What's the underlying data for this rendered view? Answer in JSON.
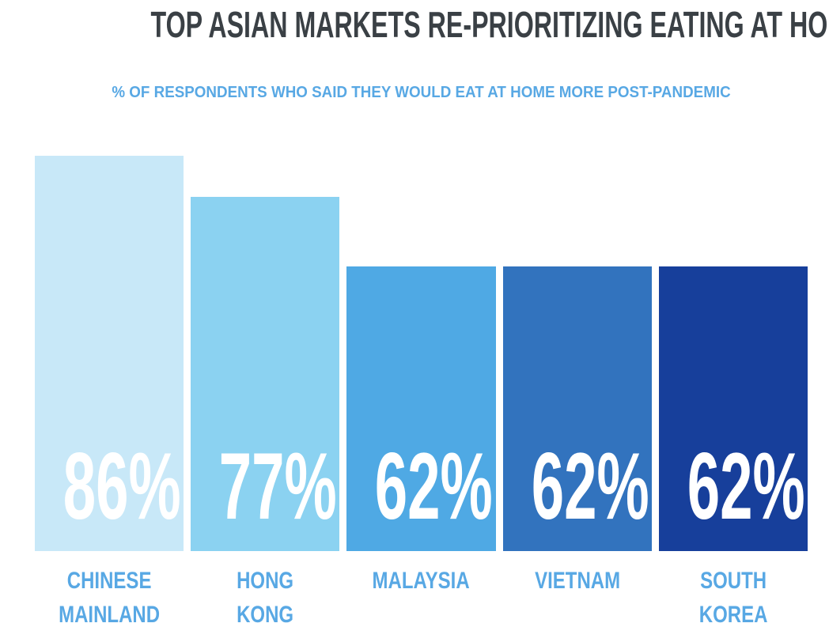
{
  "header": {
    "title": "TOP ASIAN MARKETS RE-PRIORITIZING EATING AT HOME",
    "subtitle": "% OF RESPONDENTS WHO SAID THEY WOULD EAT AT HOME MORE POST-PANDEMIC"
  },
  "chart_data": {
    "type": "bar",
    "orientation": "vertical",
    "title": "TOP ASIAN MARKETS RE-PRIORITIZING EATING AT HOME",
    "subtitle": "% OF RESPONDENTS WHO SAID THEY WOULD EAT AT HOME MORE POST-PANDEMIC",
    "categories": [
      "CHINESE MAINLAND",
      "HONG KONG",
      "MALAYSIA",
      "VIETNAM",
      "SOUTH KOREA"
    ],
    "category_lines": [
      [
        "CHINESE",
        "MAINLAND"
      ],
      [
        "HONG",
        "KONG"
      ],
      [
        "MALAYSIA"
      ],
      [
        "VIETNAM"
      ],
      [
        "SOUTH",
        "KOREA"
      ]
    ],
    "values": [
      86,
      77,
      62,
      62,
      62
    ],
    "value_labels": [
      "86%",
      "77%",
      "62%",
      "62%",
      "62%"
    ],
    "unit": "%",
    "ylim": [
      0,
      100
    ],
    "grid": false,
    "legend": false,
    "axes_shown": false,
    "bar_colors": [
      "#c8e8f8",
      "#8bd2f1",
      "#4fa9e4",
      "#3273be",
      "#173f9b"
    ],
    "value_label_color": "#ffffff",
    "category_label_color": "#58a8e4",
    "title_color": "#3a4045",
    "subtitle_color": "#58a8e4",
    "background_color": "#ffffff"
  }
}
